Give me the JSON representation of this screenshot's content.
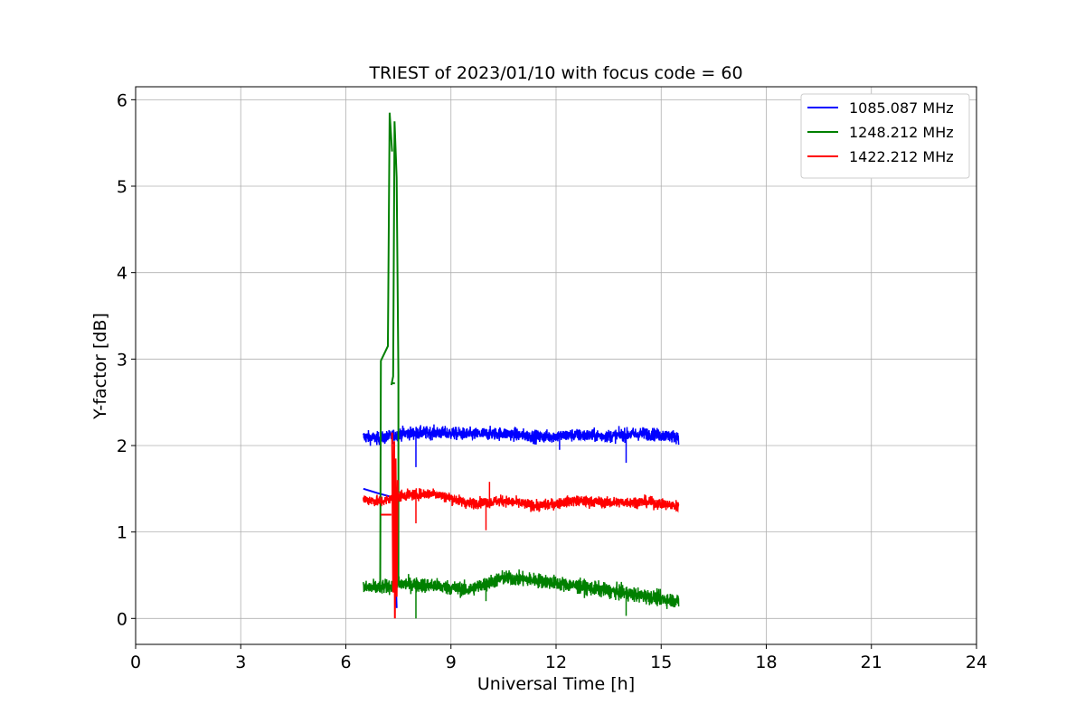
{
  "chart_data": {
    "type": "line",
    "title": "TRIEST of 2023/01/10 with focus code = 60",
    "xlabel": "Universal Time [h]",
    "ylabel": "Y-factor [dB]",
    "xlim": [
      0,
      24
    ],
    "ylim": [
      -0.3,
      6.15
    ],
    "xticks": [
      0,
      3,
      6,
      9,
      12,
      15,
      18,
      21,
      24
    ],
    "yticks": [
      0,
      1,
      2,
      3,
      4,
      5,
      6
    ],
    "grid": true,
    "legend_position": "top-right",
    "series": [
      {
        "name": "1085.087 MHz",
        "color": "#0000ff",
        "noise": 0.07,
        "baseline": [
          [
            6.5,
            2.1
          ],
          [
            7.0,
            2.08
          ],
          [
            7.6,
            2.14
          ],
          [
            8.5,
            2.15
          ],
          [
            9.5,
            2.13
          ],
          [
            10.5,
            2.14
          ],
          [
            11.5,
            2.1
          ],
          [
            12.5,
            2.12
          ],
          [
            13.5,
            2.11
          ],
          [
            14.5,
            2.14
          ],
          [
            15.5,
            2.1
          ]
        ],
        "segments": [
          {
            "x": [
              6.5,
              6.9,
              7.35,
              7.45
            ],
            "y": [
              1.5,
              1.45,
              1.4,
              0.12
            ]
          }
        ],
        "spikes": [
          [
            8.0,
            1.75
          ],
          [
            12.1,
            1.95
          ],
          [
            14.0,
            1.8
          ]
        ]
      },
      {
        "name": "1248.212 MHz",
        "color": "#008000",
        "noise": 0.08,
        "baseline": [
          [
            6.5,
            0.35
          ],
          [
            7.0,
            0.36
          ],
          [
            7.6,
            0.4
          ],
          [
            8.5,
            0.38
          ],
          [
            9.5,
            0.33
          ],
          [
            10.5,
            0.47
          ],
          [
            11.5,
            0.44
          ],
          [
            12.5,
            0.38
          ],
          [
            13.5,
            0.32
          ],
          [
            14.5,
            0.26
          ],
          [
            15.5,
            0.2
          ]
        ],
        "segments": [
          {
            "x": [
              6.98,
              7.0,
              7.2,
              7.25,
              7.32
            ],
            "y": [
              0.3,
              2.98,
              3.15,
              5.85,
              5.4
            ]
          },
          {
            "x": [
              7.32,
              7.36,
              7.4
            ],
            "y": [
              2.72,
              2.72,
              2.72
            ]
          },
          {
            "x": [
              7.3,
              7.35,
              7.39,
              7.45,
              7.5
            ],
            "y": [
              2.7,
              2.8,
              5.75,
              5.1,
              2.82
            ]
          },
          {
            "x": [
              7.5,
              7.5
            ],
            "y": [
              2.82,
              0.4
            ]
          }
        ],
        "spikes": [
          [
            8.0,
            0.0
          ],
          [
            14.0,
            0.03
          ],
          [
            10.0,
            0.2
          ]
        ]
      },
      {
        "name": "1422.212 MHz",
        "color": "#ff0000",
        "noise": 0.06,
        "baseline": [
          [
            6.5,
            1.38
          ],
          [
            7.0,
            1.35
          ],
          [
            7.6,
            1.42
          ],
          [
            8.5,
            1.45
          ],
          [
            9.5,
            1.33
          ],
          [
            10.5,
            1.36
          ],
          [
            11.5,
            1.3
          ],
          [
            12.5,
            1.36
          ],
          [
            13.5,
            1.34
          ],
          [
            14.5,
            1.35
          ],
          [
            15.5,
            1.3
          ]
        ],
        "segments": [
          {
            "x": [
              7.0,
              7.3
            ],
            "y": [
              1.2,
              1.2
            ]
          },
          {
            "x": [
              7.32,
              7.35,
              7.38,
              7.4,
              7.42,
              7.45,
              7.48
            ],
            "y": [
              2.15,
              0.3,
              2.05,
              0.0,
              1.85,
              0.25,
              1.6
            ]
          }
        ],
        "spikes": [
          [
            8.0,
            1.1
          ],
          [
            10.0,
            1.02
          ],
          [
            10.1,
            1.58
          ]
        ]
      }
    ]
  }
}
